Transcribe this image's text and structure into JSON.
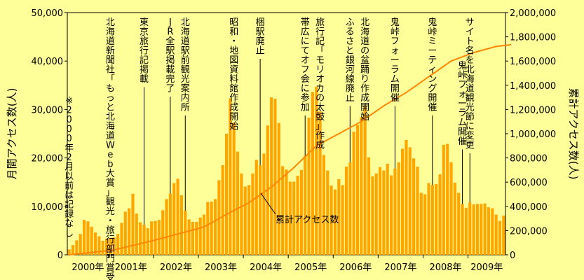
{
  "chart_data": {
    "type": "bar",
    "xlabel": "",
    "ylabel": "月間アクセス数(人)",
    "ylabel_right": "累計アクセス数(人)",
    "ylim": [
      0,
      50000
    ],
    "ylim_right": [
      0,
      2000000
    ],
    "yticks": [
      "0",
      "10,000",
      "20,000",
      "30,000",
      "40,000",
      "50,000"
    ],
    "yticks_right": [
      "0",
      "200,000",
      "400,000",
      "600,000",
      "800,000",
      "1,000,000",
      "1,200,000",
      "1,400,000",
      "1,600,000",
      "1,800,000",
      "2,000,000"
    ],
    "x_year_labels": [
      "2000年",
      "2001年",
      "2002年",
      "2003年",
      "2004年",
      "2005年",
      "2006年",
      "2007年",
      "2008年",
      "2009年"
    ],
    "start_month": "2000-02",
    "bar_color": "#FFA500",
    "line_color": "#FF8800",
    "monthly_values": [
      1100,
      2000,
      3000,
      4300,
      7200,
      6900,
      5800,
      4600,
      3800,
      2900,
      3300,
      3400,
      3600,
      4300,
      6600,
      8900,
      9600,
      12600,
      8500,
      6700,
      6200,
      5500,
      6900,
      7000,
      7200,
      9200,
      11500,
      12600,
      14800,
      15700,
      12300,
      9100,
      7300,
      6800,
      6800,
      7700,
      8300,
      10900,
      11000,
      11500,
      15400,
      18500,
      25000,
      32300,
      27300,
      21300,
      16800,
      14100,
      14400,
      16800,
      19600,
      18500,
      20900,
      26700,
      32500,
      32200,
      27200,
      18300,
      17600,
      15100,
      15100,
      16300,
      17500,
      20400,
      28300,
      33600,
      34700,
      29600,
      20600,
      17400,
      14300,
      13500,
      15600,
      14400,
      18200,
      19100,
      25400,
      26800,
      28400,
      30700,
      20100,
      16200,
      16800,
      18100,
      17400,
      18800,
      16400,
      17800,
      19100,
      21900,
      23700,
      22200,
      19900,
      18200,
      12800,
      12500,
      14800,
      14400,
      14600,
      16600,
      22700,
      22900,
      19100,
      14900,
      12800,
      10500,
      9700,
      10800,
      10400,
      10500,
      10500,
      10600,
      9800,
      9600,
      8300,
      7000,
      8100
    ],
    "cumulative_line": {
      "name": "累計アクセス数",
      "points": [
        [
          0,
          0
        ],
        [
          12,
          40000
        ],
        [
          24,
          130000
        ],
        [
          36,
          230000
        ],
        [
          43,
          350000
        ],
        [
          48,
          430000
        ],
        [
          54,
          560000
        ],
        [
          60,
          720000
        ],
        [
          66,
          900000
        ],
        [
          72,
          1000000
        ],
        [
          78,
          1100000
        ],
        [
          84,
          1230000
        ],
        [
          90,
          1340000
        ],
        [
          96,
          1470000
        ],
        [
          102,
          1600000
        ],
        [
          108,
          1670000
        ],
        [
          114,
          1720000
        ],
        [
          118,
          1735000
        ]
      ]
    },
    "annotations": [
      {
        "text": "※2000年2月以前は記録なし",
        "month_index": 0
      },
      {
        "text": "北海道新聞社「もっと北海道Web大賞」観光・旅行部門賞受賞",
        "month_index": 11
      },
      {
        "text": "東京旅行記掲載",
        "month_index": 20
      },
      {
        "text": "JR全駅掲載完了",
        "month_index": 27
      },
      {
        "text": "北海道駅前観光案内所",
        "month_index": 31
      },
      {
        "text": "昭和・地図資料館作成開始",
        "month_index": 44
      },
      {
        "text": "梱駅廃止",
        "month_index": 51
      },
      {
        "text": "帯広にてオフ会に参加",
        "month_index": 63
      },
      {
        "text": "旅行記「モリオカの太鼓」作成",
        "month_index": 67
      },
      {
        "text": "ふるさと銀河線廃止",
        "month_index": 75
      },
      {
        "text": "北海道の盆踊り作成開始",
        "month_index": 79
      },
      {
        "text": "鬼峠フォーラム開催",
        "month_index": 87
      },
      {
        "text": "鬼峠ミーティング開催",
        "month_index": 97
      },
      {
        "text": "サイト名を北海道観光節に変更",
        "month_index": 107
      },
      {
        "text": "鬼峠フォーラム開催",
        "month_index": 105
      }
    ],
    "line_label": "累計アクセス数"
  }
}
